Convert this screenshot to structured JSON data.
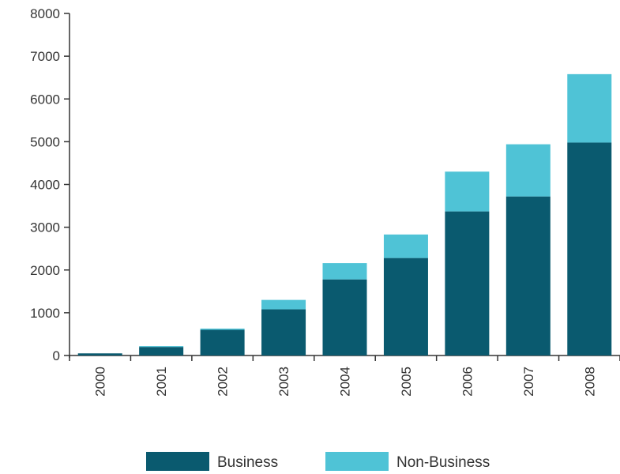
{
  "chart_data": {
    "type": "bar",
    "stacked": true,
    "categories": [
      "2000",
      "2001",
      "2002",
      "2003",
      "2004",
      "2005",
      "2006",
      "2007",
      "2008"
    ],
    "series": [
      {
        "name": "Business",
        "color": "#0a5a6f",
        "values": [
          50,
          200,
          600,
          1080,
          1780,
          2280,
          3370,
          3720,
          4980
        ]
      },
      {
        "name": "Non-Business",
        "color": "#4fc3d6",
        "values": [
          0,
          20,
          30,
          220,
          380,
          550,
          930,
          1220,
          1600
        ]
      }
    ],
    "title": "",
    "xlabel": "",
    "ylabel": "",
    "ylim": [
      0,
      8000
    ],
    "yticks": [
      0,
      1000,
      2000,
      3000,
      4000,
      5000,
      6000,
      7000,
      8000
    ],
    "grid": false,
    "legend": "bottom"
  }
}
